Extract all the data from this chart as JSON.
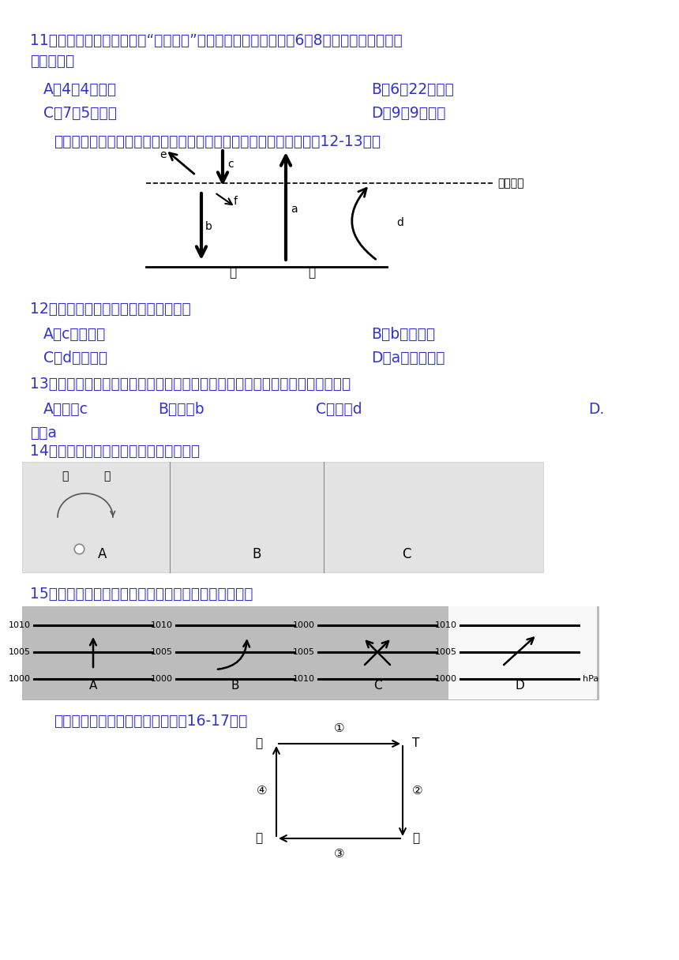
{
  "bg_color": "#ffffff",
  "text_color": "#3333cc",
  "diagram_color": "#888888",
  "q11": {
    "line1": "11．该地一年中有两次出现“立篹无影”的奇观，其中一次发生在6月8日前后，另外一次发",
    "line2": "生的时间为",
    "optA": "A．4月4日前后",
    "optB": "B．6月22日前后",
    "optC": "C．7月5日前后",
    "optD": "D．9月9日前后"
  },
  "intro12": "下图表示大气对太阳辐射的削弱作用和对地面的保温作用，读图回畇12-13题。",
  "q12": {
    "stem": "12．近地面大气主要的、直接热量来自",
    "optA": "A．c太阳辐射",
    "optB": "B．b大气辐射",
    "optC": "C．d地面辐射",
    "optD": "D．a大气逆辐射"
  },
  "q13": {
    "stem": "13．霜冻多出现在晚秋或寒冬季节晴朗的夜晓，用人造烟雾来防御霜冻的原理是",
    "optA": "A．减弱c",
    "optB": "B．增强b",
    "optC": "C．减弱d",
    "optD": "D.",
    "optD2": "增强a"
  },
  "q14": {
    "stem": "14．下列四副热力环流示意图，正确的是"
  },
  "q15": {
    "stem": "15．下列四副图中，能正确表示南半球近地面风向的是"
  },
  "intro16": "读下图，甲和乙位于近地面，完成16-17题。",
  "atm_label": "大气上界",
  "ground_labels": [
    "地",
    "面"
  ],
  "circ_labels": {
    "bing": "丙",
    "ding": "T",
    "jia": "甲",
    "yi": "乙"
  }
}
